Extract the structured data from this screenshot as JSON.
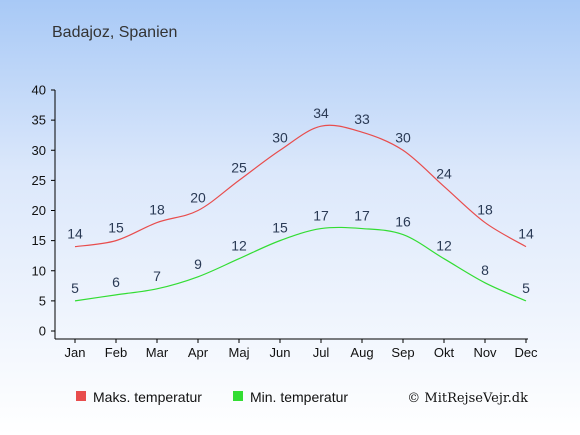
{
  "title": "Badajoz, Spanien",
  "chart_data": {
    "type": "line",
    "categories": [
      "Jan",
      "Feb",
      "Mar",
      "Apr",
      "Maj",
      "Jun",
      "Jul",
      "Aug",
      "Sep",
      "Okt",
      "Nov",
      "Dec"
    ],
    "ylim": [
      0,
      40
    ],
    "yticks": [
      0,
      5,
      10,
      15,
      20,
      25,
      30,
      35,
      40
    ],
    "grid": false,
    "legend_position": "bottom",
    "series": [
      {
        "name": "Maks. temperatur",
        "color": "#e84d4d",
        "values": [
          14,
          15,
          18,
          20,
          25,
          30,
          34,
          33,
          30,
          24,
          18,
          14
        ]
      },
      {
        "name": "Min. temperatur",
        "color": "#33dd33",
        "values": [
          5,
          6,
          7,
          9,
          12,
          15,
          17,
          17,
          16,
          12,
          8,
          5
        ]
      }
    ]
  },
  "copyright": "© MitRejseVejr.dk"
}
